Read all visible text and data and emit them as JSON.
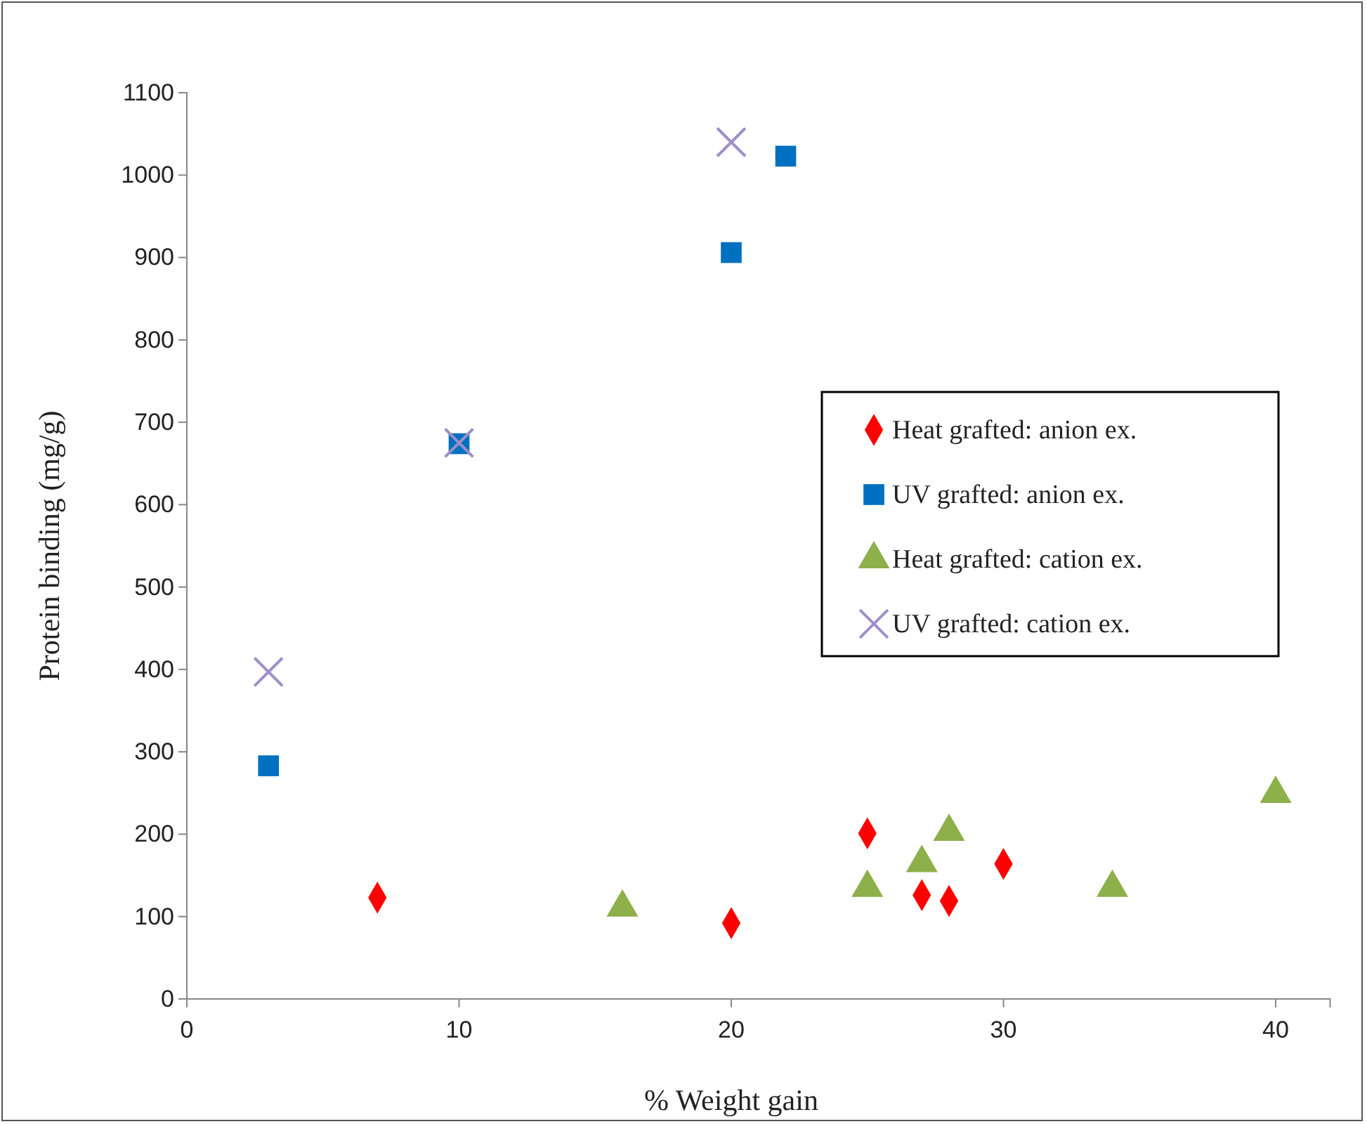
{
  "chart_data": {
    "type": "scatter",
    "xlabel": "% Weight gain",
    "ylabel": "Protein  binding (mg/g)",
    "xlim": [
      0,
      42
    ],
    "xticks": [
      0,
      10,
      20,
      30,
      40
    ],
    "ylim": [
      0,
      1100
    ],
    "yticks": [
      0,
      100,
      200,
      300,
      400,
      500,
      600,
      700,
      800,
      900,
      1000,
      1100
    ],
    "grid": false,
    "legend": "right",
    "series": [
      {
        "name": "Heat grafted: anion ex.",
        "color": "#ff0000",
        "marker": "diamond",
        "x": [
          7,
          20,
          25,
          27,
          28,
          30
        ],
        "values": [
          123,
          92,
          201,
          126,
          119,
          164
        ]
      },
      {
        "name": "UV grafted: anion ex.",
        "color": "#0070c0",
        "marker": "square",
        "x": [
          3,
          10,
          20,
          22
        ],
        "values": [
          283,
          674,
          906,
          1023
        ]
      },
      {
        "name": "Heat grafted: cation ex.",
        "color": "#8db04a",
        "marker": "triangle",
        "x": [
          16,
          25,
          27,
          28,
          34,
          40
        ],
        "values": [
          111,
          135,
          165,
          203,
          135,
          249
        ]
      },
      {
        "name": "UV grafted: cation ex.",
        "color": "#9e8fc8",
        "marker": "cross",
        "x": [
          3,
          10,
          20
        ],
        "values": [
          397,
          675,
          1040
        ]
      }
    ]
  }
}
